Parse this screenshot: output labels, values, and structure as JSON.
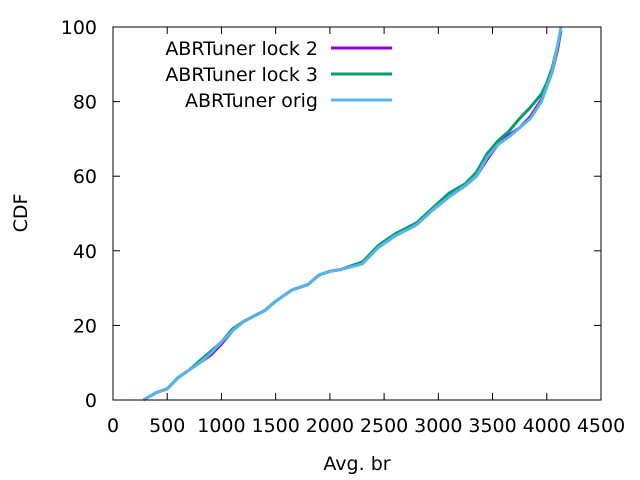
{
  "chart_data": {
    "type": "line",
    "title": "",
    "xlabel": "Avg. br",
    "ylabel": "CDF",
    "xlim": [
      0,
      4500
    ],
    "ylim": [
      0,
      100
    ],
    "x_ticks": [
      0,
      500,
      1000,
      1500,
      2000,
      2500,
      3000,
      3500,
      4000,
      4500
    ],
    "y_ticks": [
      0,
      20,
      40,
      60,
      80,
      100
    ],
    "grid": false,
    "legend_position": "top-left",
    "series": [
      {
        "name": "ABRTuner lock 2",
        "color": "#9400d3",
        "x": [
          280,
          400,
          500,
          600,
          700,
          800,
          900,
          1000,
          1100,
          1200,
          1300,
          1400,
          1500,
          1650,
          1800,
          1900,
          2000,
          2100,
          2300,
          2450,
          2600,
          2800,
          2950,
          3100,
          3250,
          3350,
          3450,
          3550,
          3650,
          3750,
          3850,
          3950,
          4000,
          4050,
          4100,
          4130
        ],
        "y": [
          0,
          2,
          3,
          6,
          8,
          10,
          12,
          15,
          18.5,
          21,
          22.5,
          24,
          26.5,
          29.5,
          31,
          33.5,
          34.5,
          35,
          37,
          41,
          44,
          47,
          51,
          54.5,
          57.5,
          60,
          64.5,
          68.5,
          71,
          73,
          76,
          80.5,
          84,
          88,
          94,
          99
        ]
      },
      {
        "name": "ABRTuner lock 3",
        "color": "#009e73",
        "x": [
          280,
          400,
          500,
          600,
          700,
          800,
          900,
          1000,
          1100,
          1200,
          1300,
          1400,
          1500,
          1650,
          1800,
          1900,
          2000,
          2100,
          2300,
          2450,
          2600,
          2800,
          2950,
          3100,
          3250,
          3350,
          3450,
          3550,
          3650,
          3750,
          3850,
          3950,
          4000,
          4050,
          4100,
          4130
        ],
        "y": [
          0,
          2,
          3,
          6,
          8,
          10.5,
          13,
          15.5,
          19,
          21,
          22.5,
          24,
          26.5,
          29.5,
          31,
          33.5,
          34.5,
          35,
          37,
          41.5,
          44.5,
          47.5,
          51.5,
          55.5,
          58,
          61,
          66,
          69.5,
          72,
          75.5,
          78.5,
          82,
          85,
          89,
          95,
          99
        ]
      },
      {
        "name": "ABRTuner orig",
        "color": "#56b4e9",
        "x": [
          280,
          400,
          500,
          600,
          700,
          800,
          900,
          1000,
          1100,
          1200,
          1300,
          1400,
          1500,
          1650,
          1800,
          1900,
          2000,
          2100,
          2300,
          2450,
          2600,
          2800,
          2950,
          3100,
          3250,
          3350,
          3450,
          3550,
          3650,
          3750,
          3850,
          3950,
          4000,
          4050,
          4100,
          4130
        ],
        "y": [
          0,
          2,
          3,
          6,
          8,
          10,
          12.5,
          15.5,
          18.5,
          21,
          22.5,
          24,
          26.5,
          29.5,
          31,
          33.5,
          34.5,
          35,
          36.5,
          41,
          44,
          47,
          51,
          54.5,
          57.5,
          60,
          65,
          68.5,
          70.5,
          73,
          75.5,
          80,
          84,
          88,
          95,
          100
        ]
      }
    ]
  }
}
